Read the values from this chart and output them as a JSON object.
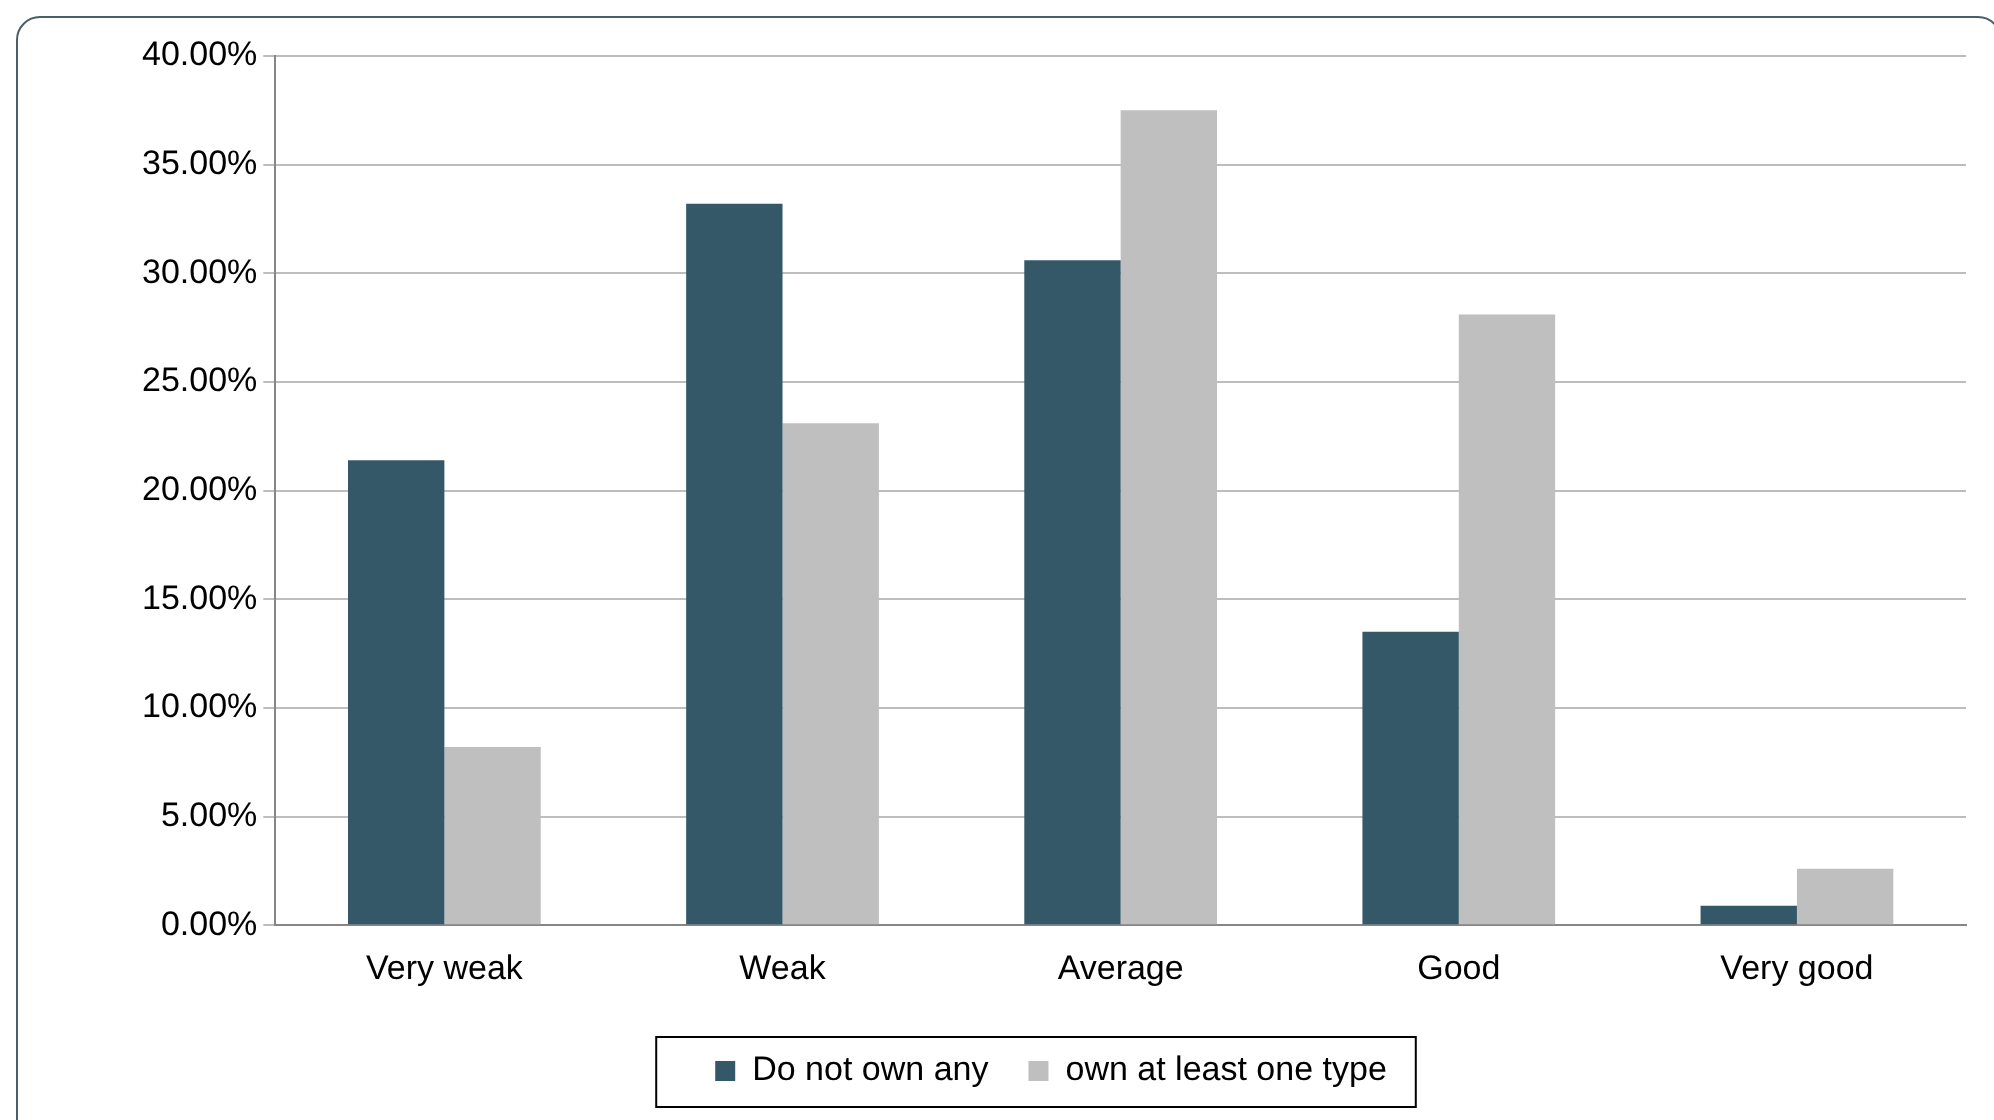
{
  "chart_data": {
    "type": "bar",
    "categories": [
      "Very weak",
      "Weak",
      "Average",
      "Good",
      "Very good"
    ],
    "series": [
      {
        "name": "Do not own any",
        "color": "#345868",
        "values": [
          21.4,
          33.2,
          30.6,
          13.5,
          0.9
        ]
      },
      {
        "name": "own at least one type",
        "color": "#bfbfbf",
        "values": [
          8.2,
          23.1,
          37.5,
          28.1,
          2.6
        ]
      }
    ],
    "ylim": [
      0,
      40
    ],
    "yticks": [
      {
        "value": 0,
        "label": "0.00%"
      },
      {
        "value": 5,
        "label": "5.00%"
      },
      {
        "value": 10,
        "label": "10.00%"
      },
      {
        "value": 15,
        "label": "15.00%"
      },
      {
        "value": 20,
        "label": "20.00%"
      },
      {
        "value": 25,
        "label": "25.00%"
      },
      {
        "value": 30,
        "label": "30.00%"
      },
      {
        "value": 35,
        "label": "35.00%"
      },
      {
        "value": 40,
        "label": "40.00%"
      }
    ],
    "grid": "y",
    "legend": "bottom"
  }
}
